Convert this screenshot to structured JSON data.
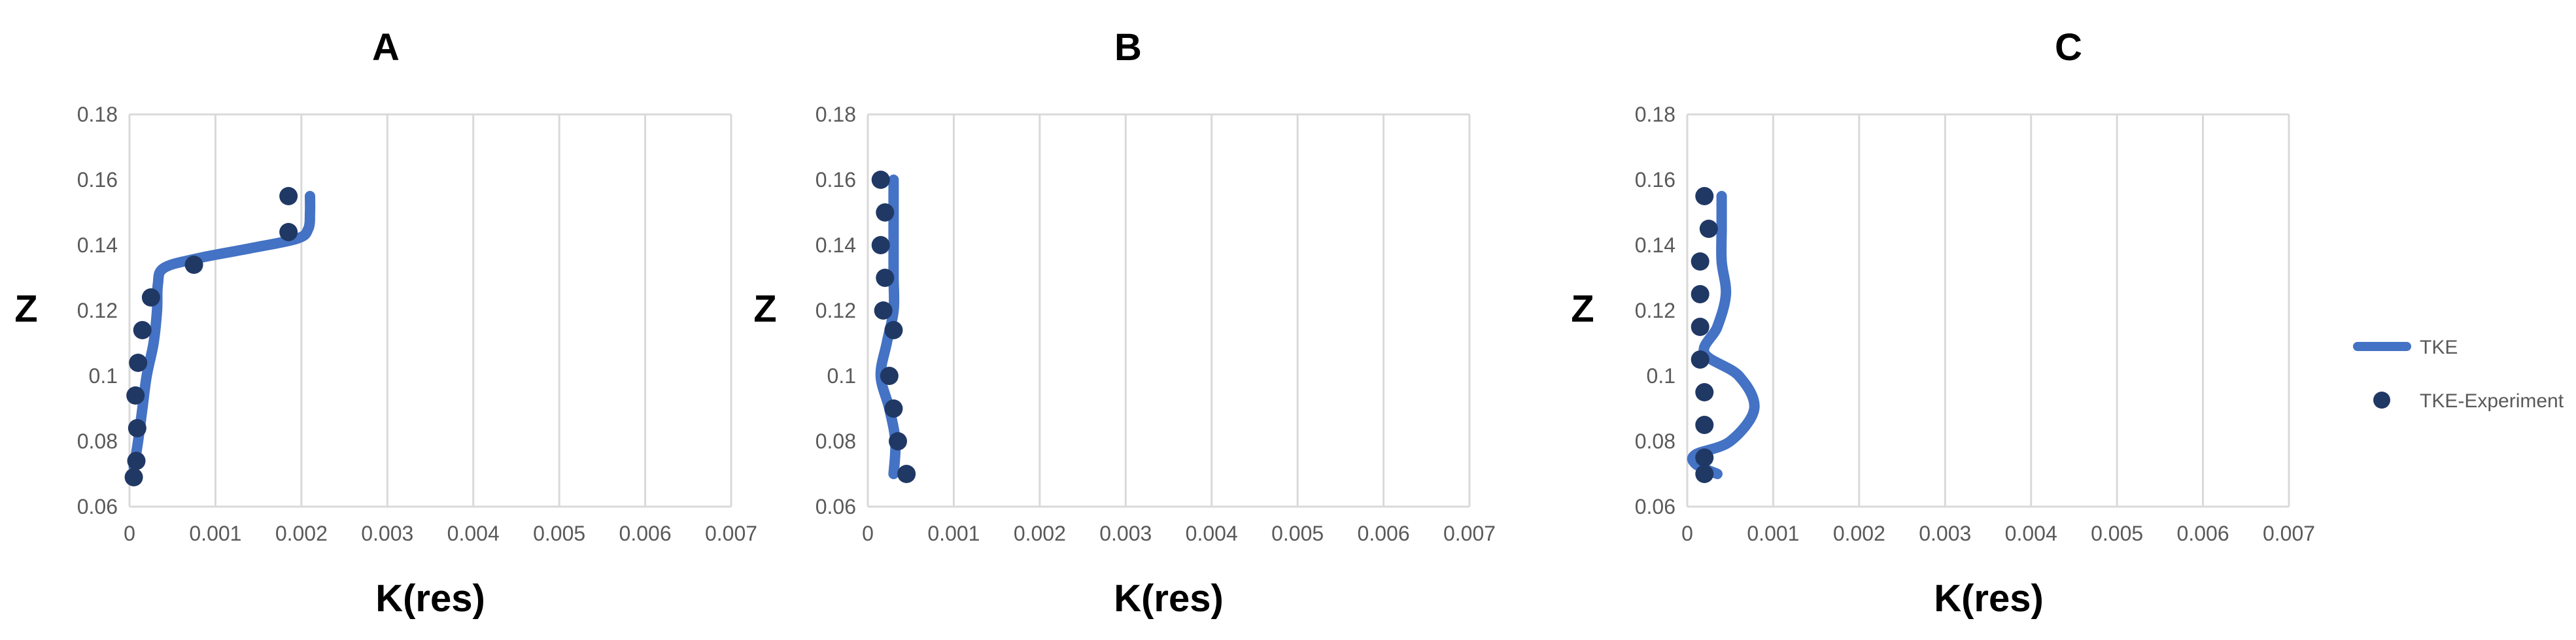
{
  "colors": {
    "line": "#4472c4",
    "marker": "#203864",
    "grid": "#d9d9d9",
    "tick_text": "#595959",
    "title_text": "#000000"
  },
  "legend": {
    "position": "right",
    "items": [
      {
        "label": "TKE",
        "kind": "line"
      },
      {
        "label": "TKE-Experiment",
        "kind": "marker"
      }
    ]
  },
  "chart_data": [
    {
      "type": "line",
      "title": "A",
      "xlabel": "K(res)",
      "ylabel": "Z",
      "xlim": [
        0,
        0.007
      ],
      "ylim": [
        0.06,
        0.18
      ],
      "x_ticks": [
        "0",
        "0.001",
        "0.002",
        "0.003",
        "0.004",
        "0.005",
        "0.006",
        "0.007"
      ],
      "y_ticks": [
        "0.06",
        "0.08",
        "0.1",
        "0.12",
        "0.14",
        "0.16",
        "0.18"
      ],
      "grid": "vertical",
      "series": [
        {
          "name": "TKE",
          "kind": "line",
          "points": [
            [
              5e-05,
              0.072
            ],
            [
              0.0001,
              0.08
            ],
            [
              0.00015,
              0.09
            ],
            [
              0.0002,
              0.1
            ],
            [
              0.00028,
              0.11
            ],
            [
              0.00032,
              0.12
            ],
            [
              0.00033,
              0.128
            ],
            [
              0.0004,
              0.133
            ],
            [
              0.0008,
              0.136
            ],
            [
              0.0014,
              0.139
            ],
            [
              0.00195,
              0.142
            ],
            [
              0.00208,
              0.145
            ],
            [
              0.0021,
              0.15
            ],
            [
              0.0021,
              0.155
            ]
          ]
        },
        {
          "name": "TKE-Experiment",
          "kind": "scatter",
          "points": [
            [
              5e-05,
              0.069
            ],
            [
              8e-05,
              0.074
            ],
            [
              9e-05,
              0.084
            ],
            [
              7e-05,
              0.094
            ],
            [
              0.0001,
              0.104
            ],
            [
              0.00015,
              0.114
            ],
            [
              0.00025,
              0.124
            ],
            [
              0.00075,
              0.134
            ],
            [
              0.00185,
              0.144
            ],
            [
              0.00185,
              0.155
            ]
          ]
        }
      ]
    },
    {
      "type": "line",
      "title": "B",
      "xlabel": "K(res)",
      "ylabel": "Z",
      "xlim": [
        0,
        0.007
      ],
      "ylim": [
        0.06,
        0.18
      ],
      "x_ticks": [
        "0",
        "0.001",
        "0.002",
        "0.003",
        "0.004",
        "0.005",
        "0.006",
        "0.007"
      ],
      "y_ticks": [
        "0.06",
        "0.08",
        "0.1",
        "0.12",
        "0.14",
        "0.16",
        "0.18"
      ],
      "grid": "vertical",
      "series": [
        {
          "name": "TKE",
          "kind": "line",
          "points": [
            [
              0.0003,
              0.07
            ],
            [
              0.00032,
              0.08
            ],
            [
              0.00025,
              0.09
            ],
            [
              0.00015,
              0.1
            ],
            [
              0.00022,
              0.11
            ],
            [
              0.0003,
              0.12
            ],
            [
              0.0003,
              0.13
            ],
            [
              0.0003,
              0.14
            ],
            [
              0.0003,
              0.15
            ],
            [
              0.0003,
              0.16
            ]
          ]
        },
        {
          "name": "TKE-Experiment",
          "kind": "scatter",
          "points": [
            [
              0.00015,
              0.16
            ],
            [
              0.0002,
              0.15
            ],
            [
              0.00015,
              0.14
            ],
            [
              0.0002,
              0.13
            ],
            [
              0.00018,
              0.12
            ],
            [
              0.0003,
              0.114
            ],
            [
              0.00025,
              0.1
            ],
            [
              0.0003,
              0.09
            ],
            [
              0.00035,
              0.08
            ],
            [
              0.00045,
              0.07
            ]
          ]
        }
      ]
    },
    {
      "type": "line",
      "title": "C",
      "xlabel": "K(res)",
      "ylabel": "Z",
      "xlim": [
        0,
        0.007
      ],
      "ylim": [
        0.06,
        0.18
      ],
      "x_ticks": [
        "0",
        "0.001",
        "0.002",
        "0.003",
        "0.004",
        "0.005",
        "0.006",
        "0.007"
      ],
      "y_ticks": [
        "0.06",
        "0.08",
        "0.1",
        "0.12",
        "0.14",
        "0.16",
        "0.18"
      ],
      "grid": "vertical",
      "series": [
        {
          "name": "TKE",
          "kind": "line",
          "points": [
            [
              0.00035,
              0.07
            ],
            [
              0.0001,
              0.073
            ],
            [
              0.0001,
              0.076
            ],
            [
              0.0005,
              0.08
            ],
            [
              0.00078,
              0.09
            ],
            [
              0.0006,
              0.1
            ],
            [
              0.0002,
              0.107
            ],
            [
              0.00035,
              0.115
            ],
            [
              0.00045,
              0.125
            ],
            [
              0.0004,
              0.135
            ],
            [
              0.0004,
              0.145
            ],
            [
              0.0004,
              0.155
            ]
          ]
        },
        {
          "name": "TKE-Experiment",
          "kind": "scatter",
          "points": [
            [
              0.0002,
              0.155
            ],
            [
              0.00025,
              0.145
            ],
            [
              0.00015,
              0.135
            ],
            [
              0.00015,
              0.125
            ],
            [
              0.00015,
              0.115
            ],
            [
              0.00015,
              0.105
            ],
            [
              0.0002,
              0.095
            ],
            [
              0.0002,
              0.085
            ],
            [
              0.0002,
              0.075
            ],
            [
              0.0002,
              0.07
            ]
          ]
        }
      ]
    }
  ]
}
